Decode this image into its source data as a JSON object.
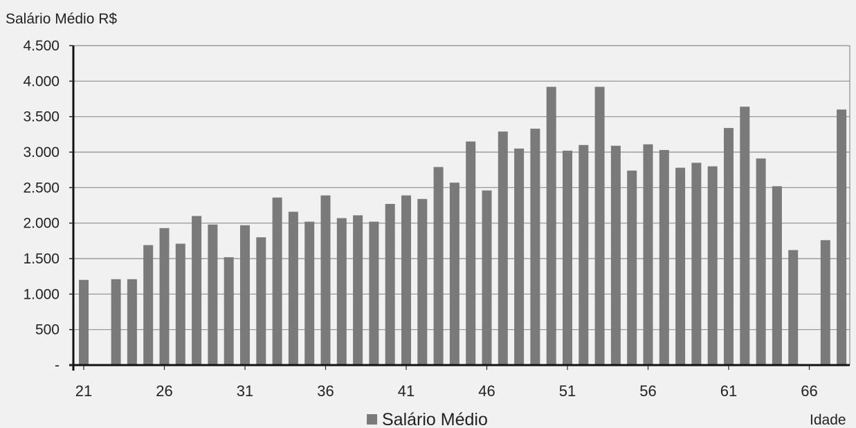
{
  "chart_data": {
    "type": "bar",
    "ylabel": "Salário Médio R$",
    "xlabel": "Idade",
    "legend": {
      "position": "bottom",
      "entries": [
        "Salário Médio"
      ]
    },
    "grid": true,
    "bar_color": "#7a7a7a",
    "ylim": [
      0,
      4500
    ],
    "y_ticks": [
      {
        "value": 0,
        "label": "-"
      },
      {
        "value": 500,
        "label": "500"
      },
      {
        "value": 1000,
        "label": "1.000"
      },
      {
        "value": 1500,
        "label": "1.500"
      },
      {
        "value": 2000,
        "label": "2.000"
      },
      {
        "value": 2500,
        "label": "2.500"
      },
      {
        "value": 3000,
        "label": "3.000"
      },
      {
        "value": 3500,
        "label": "3.500"
      },
      {
        "value": 4000,
        "label": "4.000"
      },
      {
        "value": 4500,
        "label": "4.500"
      }
    ],
    "x_tick_labels": [
      "21",
      "26",
      "31",
      "36",
      "41",
      "46",
      "51",
      "56",
      "61",
      "66"
    ],
    "series": [
      {
        "name": "Salário Médio",
        "points": [
          {
            "x": 21,
            "y": 1200
          },
          {
            "x": 22,
            "y": null
          },
          {
            "x": 23,
            "y": 1210
          },
          {
            "x": 24,
            "y": 1210
          },
          {
            "x": 25,
            "y": 1690
          },
          {
            "x": 26,
            "y": 1930
          },
          {
            "x": 27,
            "y": 1710
          },
          {
            "x": 28,
            "y": 2100
          },
          {
            "x": 29,
            "y": 1980
          },
          {
            "x": 30,
            "y": 1520
          },
          {
            "x": 31,
            "y": 1970
          },
          {
            "x": 32,
            "y": 1800
          },
          {
            "x": 33,
            "y": 2360
          },
          {
            "x": 34,
            "y": 2160
          },
          {
            "x": 35,
            "y": 2020
          },
          {
            "x": 36,
            "y": 2390
          },
          {
            "x": 37,
            "y": 2070
          },
          {
            "x": 38,
            "y": 2110
          },
          {
            "x": 39,
            "y": 2020
          },
          {
            "x": 40,
            "y": 2270
          },
          {
            "x": 41,
            "y": 2390
          },
          {
            "x": 42,
            "y": 2340
          },
          {
            "x": 43,
            "y": 2790
          },
          {
            "x": 44,
            "y": 2570
          },
          {
            "x": 45,
            "y": 3150
          },
          {
            "x": 46,
            "y": 2460
          },
          {
            "x": 47,
            "y": 3290
          },
          {
            "x": 48,
            "y": 3050
          },
          {
            "x": 49,
            "y": 3330
          },
          {
            "x": 50,
            "y": 3920
          },
          {
            "x": 51,
            "y": 3020
          },
          {
            "x": 52,
            "y": 3100
          },
          {
            "x": 53,
            "y": 3920
          },
          {
            "x": 54,
            "y": 3090
          },
          {
            "x": 55,
            "y": 2740
          },
          {
            "x": 56,
            "y": 3110
          },
          {
            "x": 57,
            "y": 3030
          },
          {
            "x": 58,
            "y": 2780
          },
          {
            "x": 59,
            "y": 2850
          },
          {
            "x": 60,
            "y": 2800
          },
          {
            "x": 61,
            "y": 3340
          },
          {
            "x": 62,
            "y": 3640
          },
          {
            "x": 63,
            "y": 2910
          },
          {
            "x": 64,
            "y": 2520
          },
          {
            "x": 65,
            "y": 1620
          },
          {
            "x": 66,
            "y": null
          },
          {
            "x": 67,
            "y": 1760
          },
          {
            "x": 68,
            "y": 3600
          }
        ]
      }
    ]
  }
}
